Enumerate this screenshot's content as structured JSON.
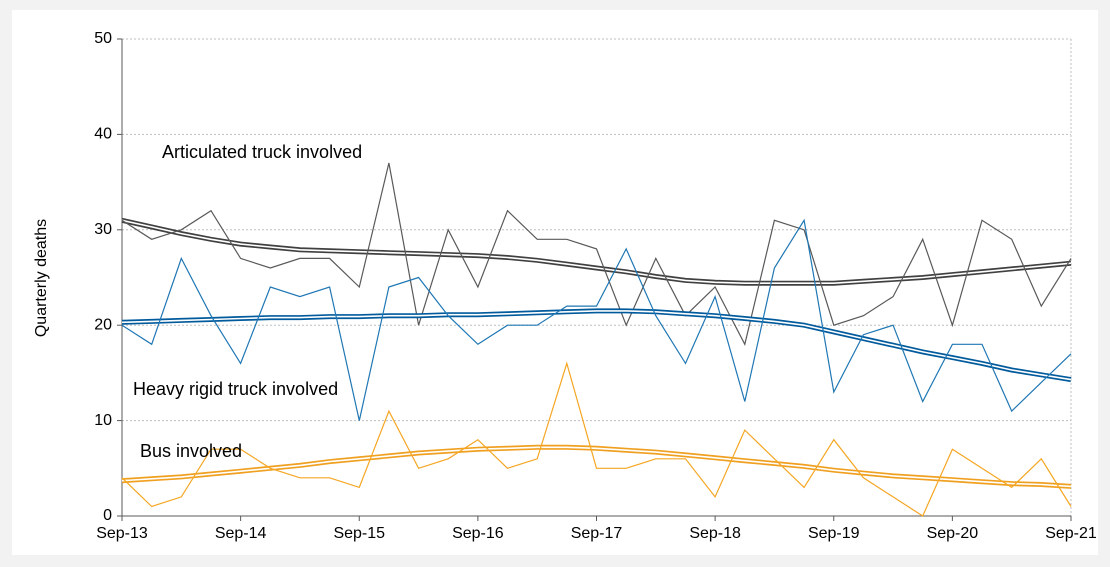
{
  "chart_data": {
    "type": "line",
    "y_label": "Quarterly deaths",
    "categories": [
      "Sep-13",
      null,
      null,
      null,
      "Sep-14",
      null,
      null,
      null,
      "Sep-15",
      null,
      null,
      null,
      "Sep-16",
      null,
      null,
      null,
      "Sep-17",
      null,
      null,
      null,
      "Sep-18",
      null,
      null,
      null,
      "Sep-19",
      null,
      null,
      null,
      "Sep-20",
      null,
      null,
      null,
      "Sep-21"
    ],
    "series": [
      {
        "name": "Articulated truck involved",
        "color": "#595959",
        "trend_color": "#404040",
        "values": [
          31,
          29,
          30,
          32,
          27,
          26,
          27,
          27,
          24,
          37,
          20,
          30,
          24,
          32,
          29,
          29,
          28,
          20,
          27,
          21,
          24,
          18,
          31,
          30,
          20,
          21,
          23,
          29,
          20,
          31,
          29,
          22,
          27
        ],
        "trend": [
          31.0,
          30.3,
          29.6,
          29.0,
          28.5,
          28.2,
          27.9,
          27.8,
          27.7,
          27.6,
          27.5,
          27.4,
          27.3,
          27.1,
          26.8,
          26.4,
          26.0,
          25.6,
          25.1,
          24.7,
          24.5,
          24.4,
          24.4,
          24.4,
          24.4,
          24.6,
          24.8,
          25.0,
          25.3,
          25.6,
          25.9,
          26.2,
          26.5
        ]
      },
      {
        "name": "Heavy rigid truck involved",
        "color": "#1f77b4",
        "trend_color": "#005a9c",
        "values": [
          20,
          18,
          27,
          21,
          16,
          24,
          23,
          24,
          10,
          24,
          25,
          21,
          18,
          20,
          20,
          22,
          22,
          28,
          21,
          16,
          23,
          12,
          26,
          31,
          13,
          19,
          20,
          12,
          18,
          18,
          11,
          14,
          17
        ],
        "trend": [
          20.3,
          20.4,
          20.5,
          20.6,
          20.7,
          20.8,
          20.8,
          20.9,
          20.9,
          21.0,
          21.0,
          21.1,
          21.1,
          21.2,
          21.3,
          21.4,
          21.5,
          21.5,
          21.4,
          21.2,
          21.0,
          20.7,
          20.4,
          20.0,
          19.3,
          18.6,
          17.9,
          17.2,
          16.6,
          16.0,
          15.3,
          14.8,
          14.3
        ]
      },
      {
        "name": "Bus involved",
        "color": "#f5a623",
        "trend_color": "#f0a020",
        "values": [
          4,
          1,
          2,
          7,
          7,
          5,
          4,
          4,
          3,
          11,
          5,
          6,
          8,
          5,
          6,
          16,
          5,
          5,
          6,
          6,
          2,
          9,
          6,
          3,
          8,
          4,
          2,
          0,
          7,
          5,
          3,
          6,
          1
        ],
        "trend": [
          3.7,
          3.9,
          4.1,
          4.4,
          4.7,
          5.0,
          5.3,
          5.7,
          6.0,
          6.3,
          6.6,
          6.8,
          7.0,
          7.1,
          7.2,
          7.2,
          7.1,
          6.9,
          6.7,
          6.4,
          6.1,
          5.8,
          5.5,
          5.2,
          4.8,
          4.5,
          4.2,
          4.0,
          3.8,
          3.6,
          3.4,
          3.3,
          3.1
        ]
      }
    ],
    "ylim": [
      0,
      50
    ],
    "yticks": [
      0,
      10,
      20,
      30,
      40,
      50
    ],
    "grid": true
  }
}
